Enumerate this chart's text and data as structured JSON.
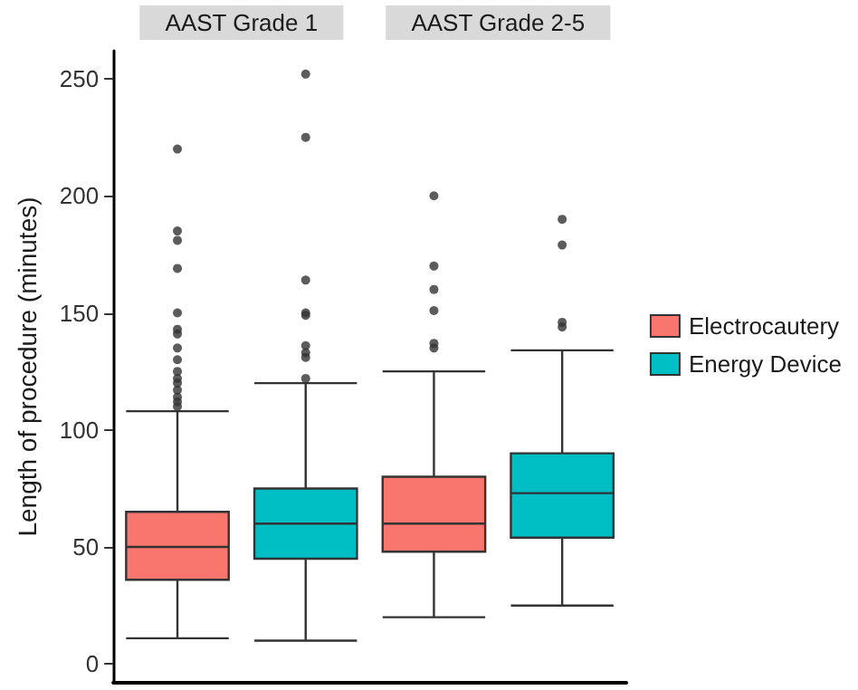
{
  "chart_data": {
    "type": "box",
    "ylabel": "Length of procedure (minutes)",
    "categories": [
      "AAST Grade 1",
      "AAST Grade 2-5"
    ],
    "ylim": [
      -8,
      262
    ],
    "yticks": [
      0,
      50,
      100,
      150,
      200,
      250
    ],
    "grid": false,
    "legend": "right",
    "series": [
      {
        "name": "Electrocautery",
        "color": "#f8766d",
        "boxes": [
          {
            "low": 11,
            "q1": 36,
            "median": 50,
            "q3": 65,
            "high": 108,
            "outliers": [
              220,
              185,
              181,
              169,
              150,
              143,
              141,
              135,
              130,
              125,
              122,
              120,
              117,
              114,
              112,
              110
            ]
          },
          {
            "low": 20,
            "q1": 48,
            "median": 60,
            "q3": 80,
            "high": 125,
            "outliers": [
              200,
              170,
              160,
              151,
              137,
              135
            ]
          }
        ]
      },
      {
        "name": "Energy Device",
        "color": "#00bfc4",
        "boxes": [
          {
            "low": 10,
            "q1": 45,
            "median": 60,
            "q3": 75,
            "high": 120,
            "outliers": [
              252,
              225,
              164,
              150,
              149,
              136,
              133,
              131,
              122
            ]
          },
          {
            "low": 25,
            "q1": 54,
            "median": 73,
            "q3": 90,
            "high": 134,
            "outliers": [
              190,
              179,
              146,
              144
            ]
          }
        ]
      }
    ]
  }
}
